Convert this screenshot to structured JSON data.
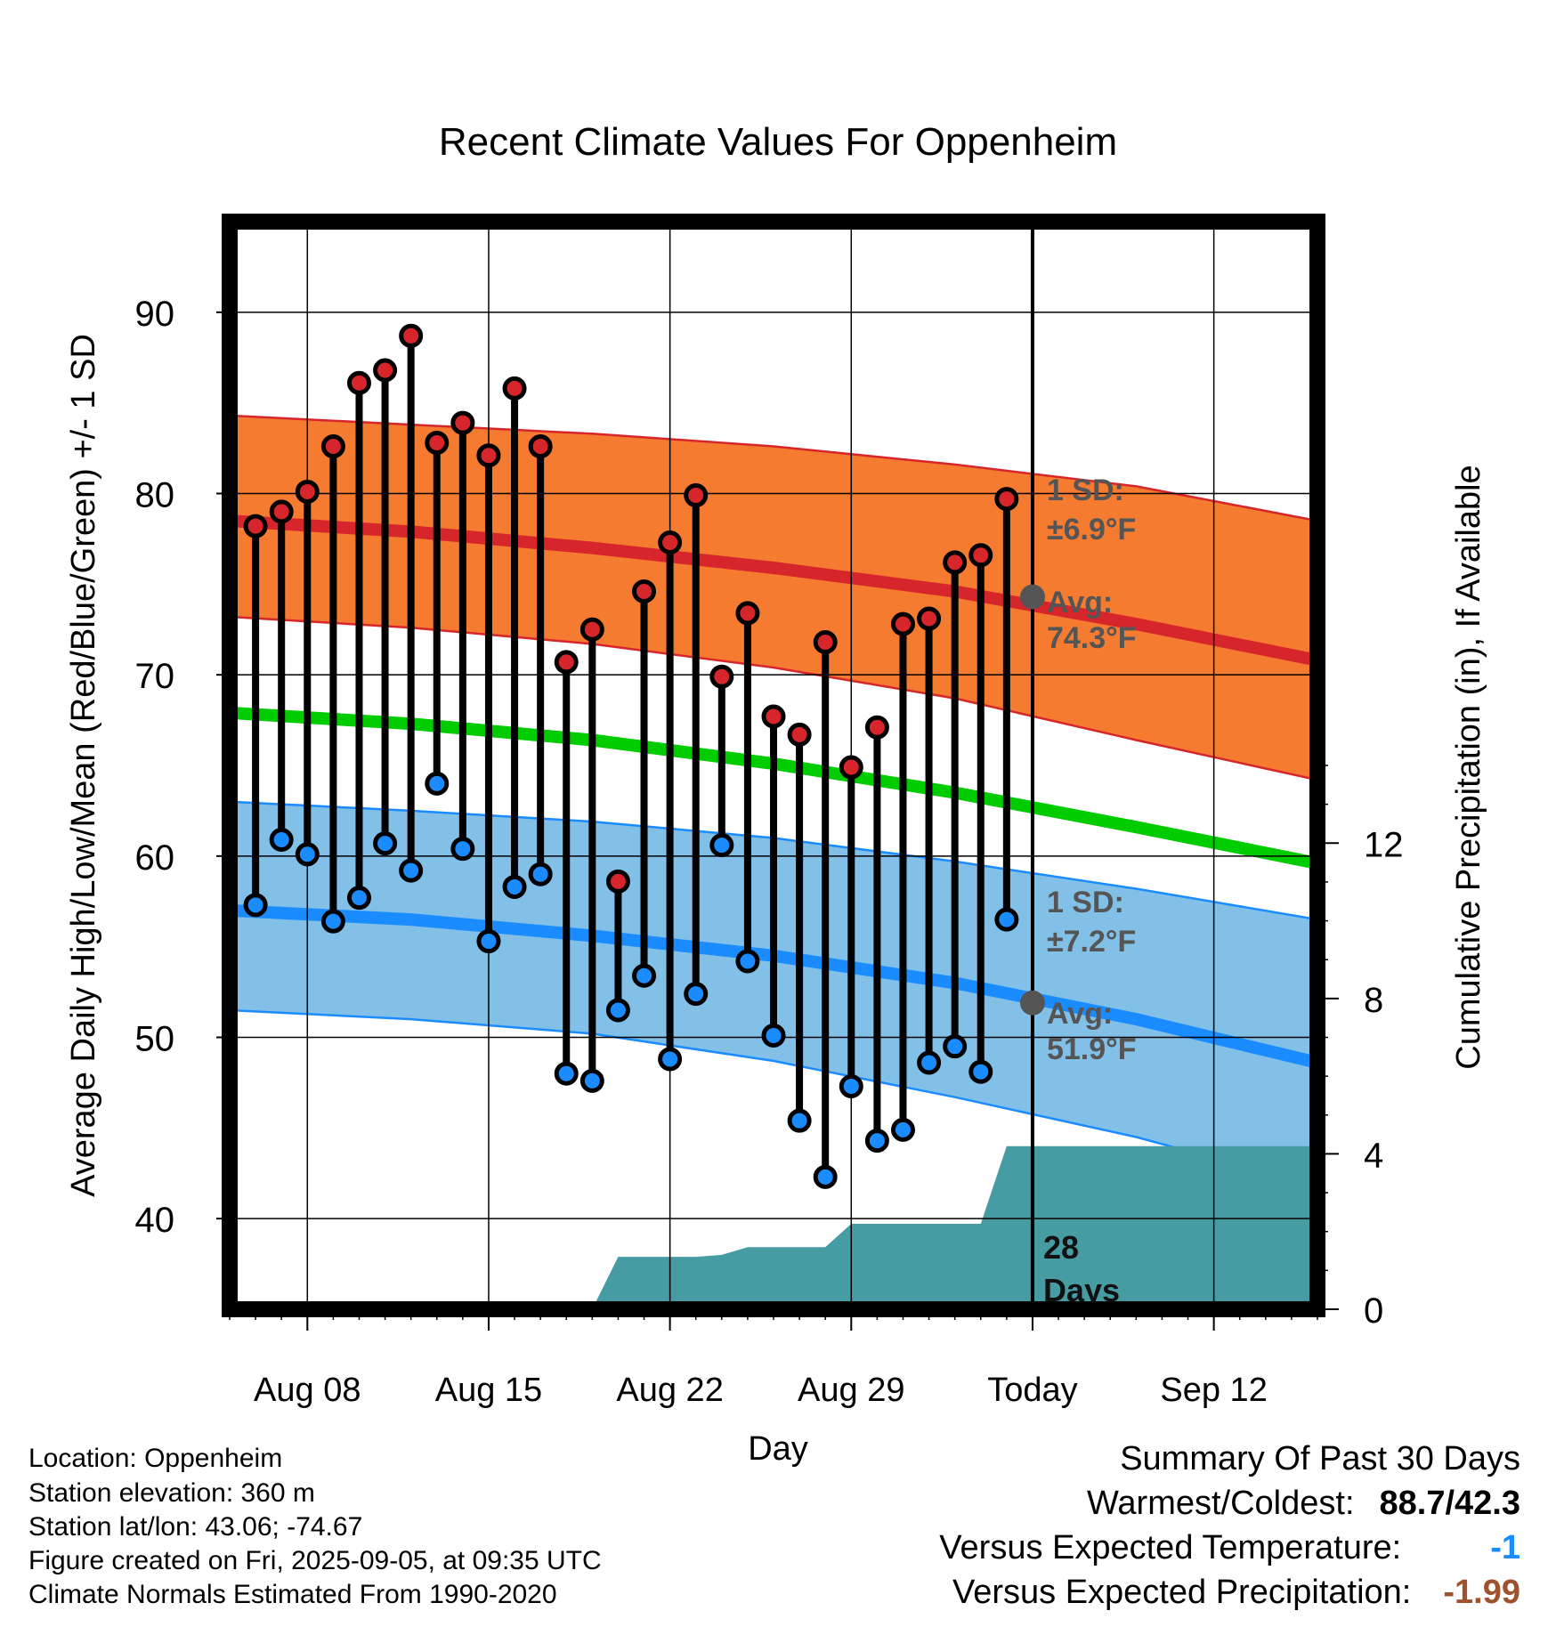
{
  "chart_data": {
    "type": "line",
    "title": "Recent Climate Values For Oppenheim",
    "xlabel": "Day",
    "ylabel": "Average Daily High/Low/Mean (Red/Blue/Green) +/- 1 SD",
    "y2label": "Cumulative Precipitation (in), If Available",
    "x_ticks": [
      {
        "label": "Aug 08",
        "day": 8
      },
      {
        "label": "Aug 15",
        "day": 15
      },
      {
        "label": "Aug 22",
        "day": 22
      },
      {
        "label": "Aug 29",
        "day": 29
      },
      {
        "label": "Today",
        "day": 36
      },
      {
        "label": "Sep 12",
        "day": 43
      }
    ],
    "xlim": [
      5,
      47
    ],
    "ylim": [
      35,
      95
    ],
    "y_ticks": [
      40,
      50,
      60,
      70,
      80,
      90
    ],
    "y2lim": [
      0,
      28
    ],
    "y2_ticks": [
      0,
      4,
      8,
      12
    ],
    "grid": true,
    "today_day": 36,
    "observed": {
      "days": [
        6,
        7,
        8,
        9,
        10,
        11,
        12,
        13,
        14,
        15,
        16,
        17,
        18,
        19,
        20,
        21,
        22,
        23,
        24,
        25,
        26,
        27,
        28,
        29,
        30,
        31,
        32,
        33,
        34,
        35
      ],
      "high": [
        78.2,
        79.0,
        80.1,
        82.6,
        86.1,
        86.8,
        88.7,
        82.8,
        83.9,
        82.1,
        85.8,
        82.6,
        70.7,
        72.5,
        58.6,
        74.6,
        77.3,
        79.9,
        69.9,
        73.4,
        67.7,
        66.7,
        71.8,
        64.9,
        67.1,
        72.8,
        73.1,
        76.2,
        76.6,
        79.7
      ],
      "low": [
        57.3,
        60.9,
        60.1,
        56.4,
        57.7,
        60.7,
        59.2,
        64.0,
        60.4,
        55.3,
        58.3,
        59.0,
        48.0,
        47.6,
        51.5,
        53.4,
        48.8,
        52.4,
        60.6,
        54.2,
        50.1,
        45.4,
        42.3,
        47.3,
        44.3,
        44.9,
        48.6,
        49.5,
        48.1,
        56.5
      ]
    },
    "normals": {
      "days": [
        5,
        12,
        19,
        26,
        33,
        40,
        47
      ],
      "high_avg": [
        78.5,
        77.9,
        77.0,
        75.9,
        74.6,
        72.8,
        70.8
      ],
      "high_sd_upper": [
        84.3,
        83.8,
        83.3,
        82.6,
        81.6,
        80.4,
        78.5
      ],
      "high_sd_lower": [
        73.2,
        72.6,
        71.7,
        70.4,
        68.7,
        66.4,
        64.2
      ],
      "mean": [
        67.9,
        67.3,
        66.4,
        65.1,
        63.5,
        61.6,
        59.6
      ],
      "low_avg": [
        57.0,
        56.5,
        55.6,
        54.5,
        53.0,
        51.0,
        48.6
      ],
      "low_sd_upper": [
        63.0,
        62.5,
        61.9,
        61.0,
        59.7,
        58.2,
        56.5
      ],
      "low_sd_lower": [
        51.5,
        51.0,
        50.2,
        48.7,
        46.7,
        44.5,
        41.8
      ]
    },
    "precipitation": {
      "days": [
        5,
        16,
        19,
        20,
        22,
        23,
        24,
        25,
        26,
        27,
        28,
        29,
        30,
        31,
        32,
        33,
        34,
        35,
        47
      ],
      "cumulative": [
        0,
        0,
        0,
        1.35,
        1.35,
        1.35,
        1.4,
        1.6,
        1.6,
        1.6,
        1.6,
        2.2,
        2.2,
        2.2,
        2.2,
        2.2,
        2.2,
        4.2,
        4.2
      ]
    },
    "high_annotation": {
      "sd_label": "1 SD:",
      "sd_value": "±6.9°F",
      "avg_label": "Avg:",
      "avg_value": "74.3°F",
      "avg": 74.3
    },
    "low_annotation": {
      "sd_label": "1 SD:",
      "sd_value": "±7.2°F",
      "avg_label": "Avg:",
      "avg_value": "51.9°F",
      "avg": 51.9
    },
    "precip_annotation": {
      "line1": "28",
      "line2": "Days"
    },
    "colors": {
      "high_band": "#f47b30",
      "high_line": "#d7262b",
      "mean_line": "#00cc00",
      "low_band": "#82c0e8",
      "low_line": "#1a8cff",
      "precip_fill": "#479ca4",
      "high_dot": "#d7262b",
      "low_dot": "#1a8cff",
      "annotation_text": "#555555"
    }
  },
  "footer": {
    "location": "Location: Oppenheim",
    "elevation": "Station elevation: 360 m",
    "latlon": "Station lat/lon: 43.06; -74.67",
    "created": "Figure created on Fri, 2025-09-05, at 09:35 UTC",
    "normals": "Climate Normals Estimated From 1990-2020"
  },
  "summary": {
    "title": "Summary Of Past 30 Days",
    "warmest_label": "Warmest/Coldest:",
    "warmest_value": "88.7/42.3",
    "temp_label": "Versus Expected Temperature:",
    "temp_value": "-1",
    "temp_color": "#1a8cff",
    "precip_label": "Versus Expected Precipitation:",
    "precip_value": "-1.99",
    "precip_color": "#a0522d"
  }
}
